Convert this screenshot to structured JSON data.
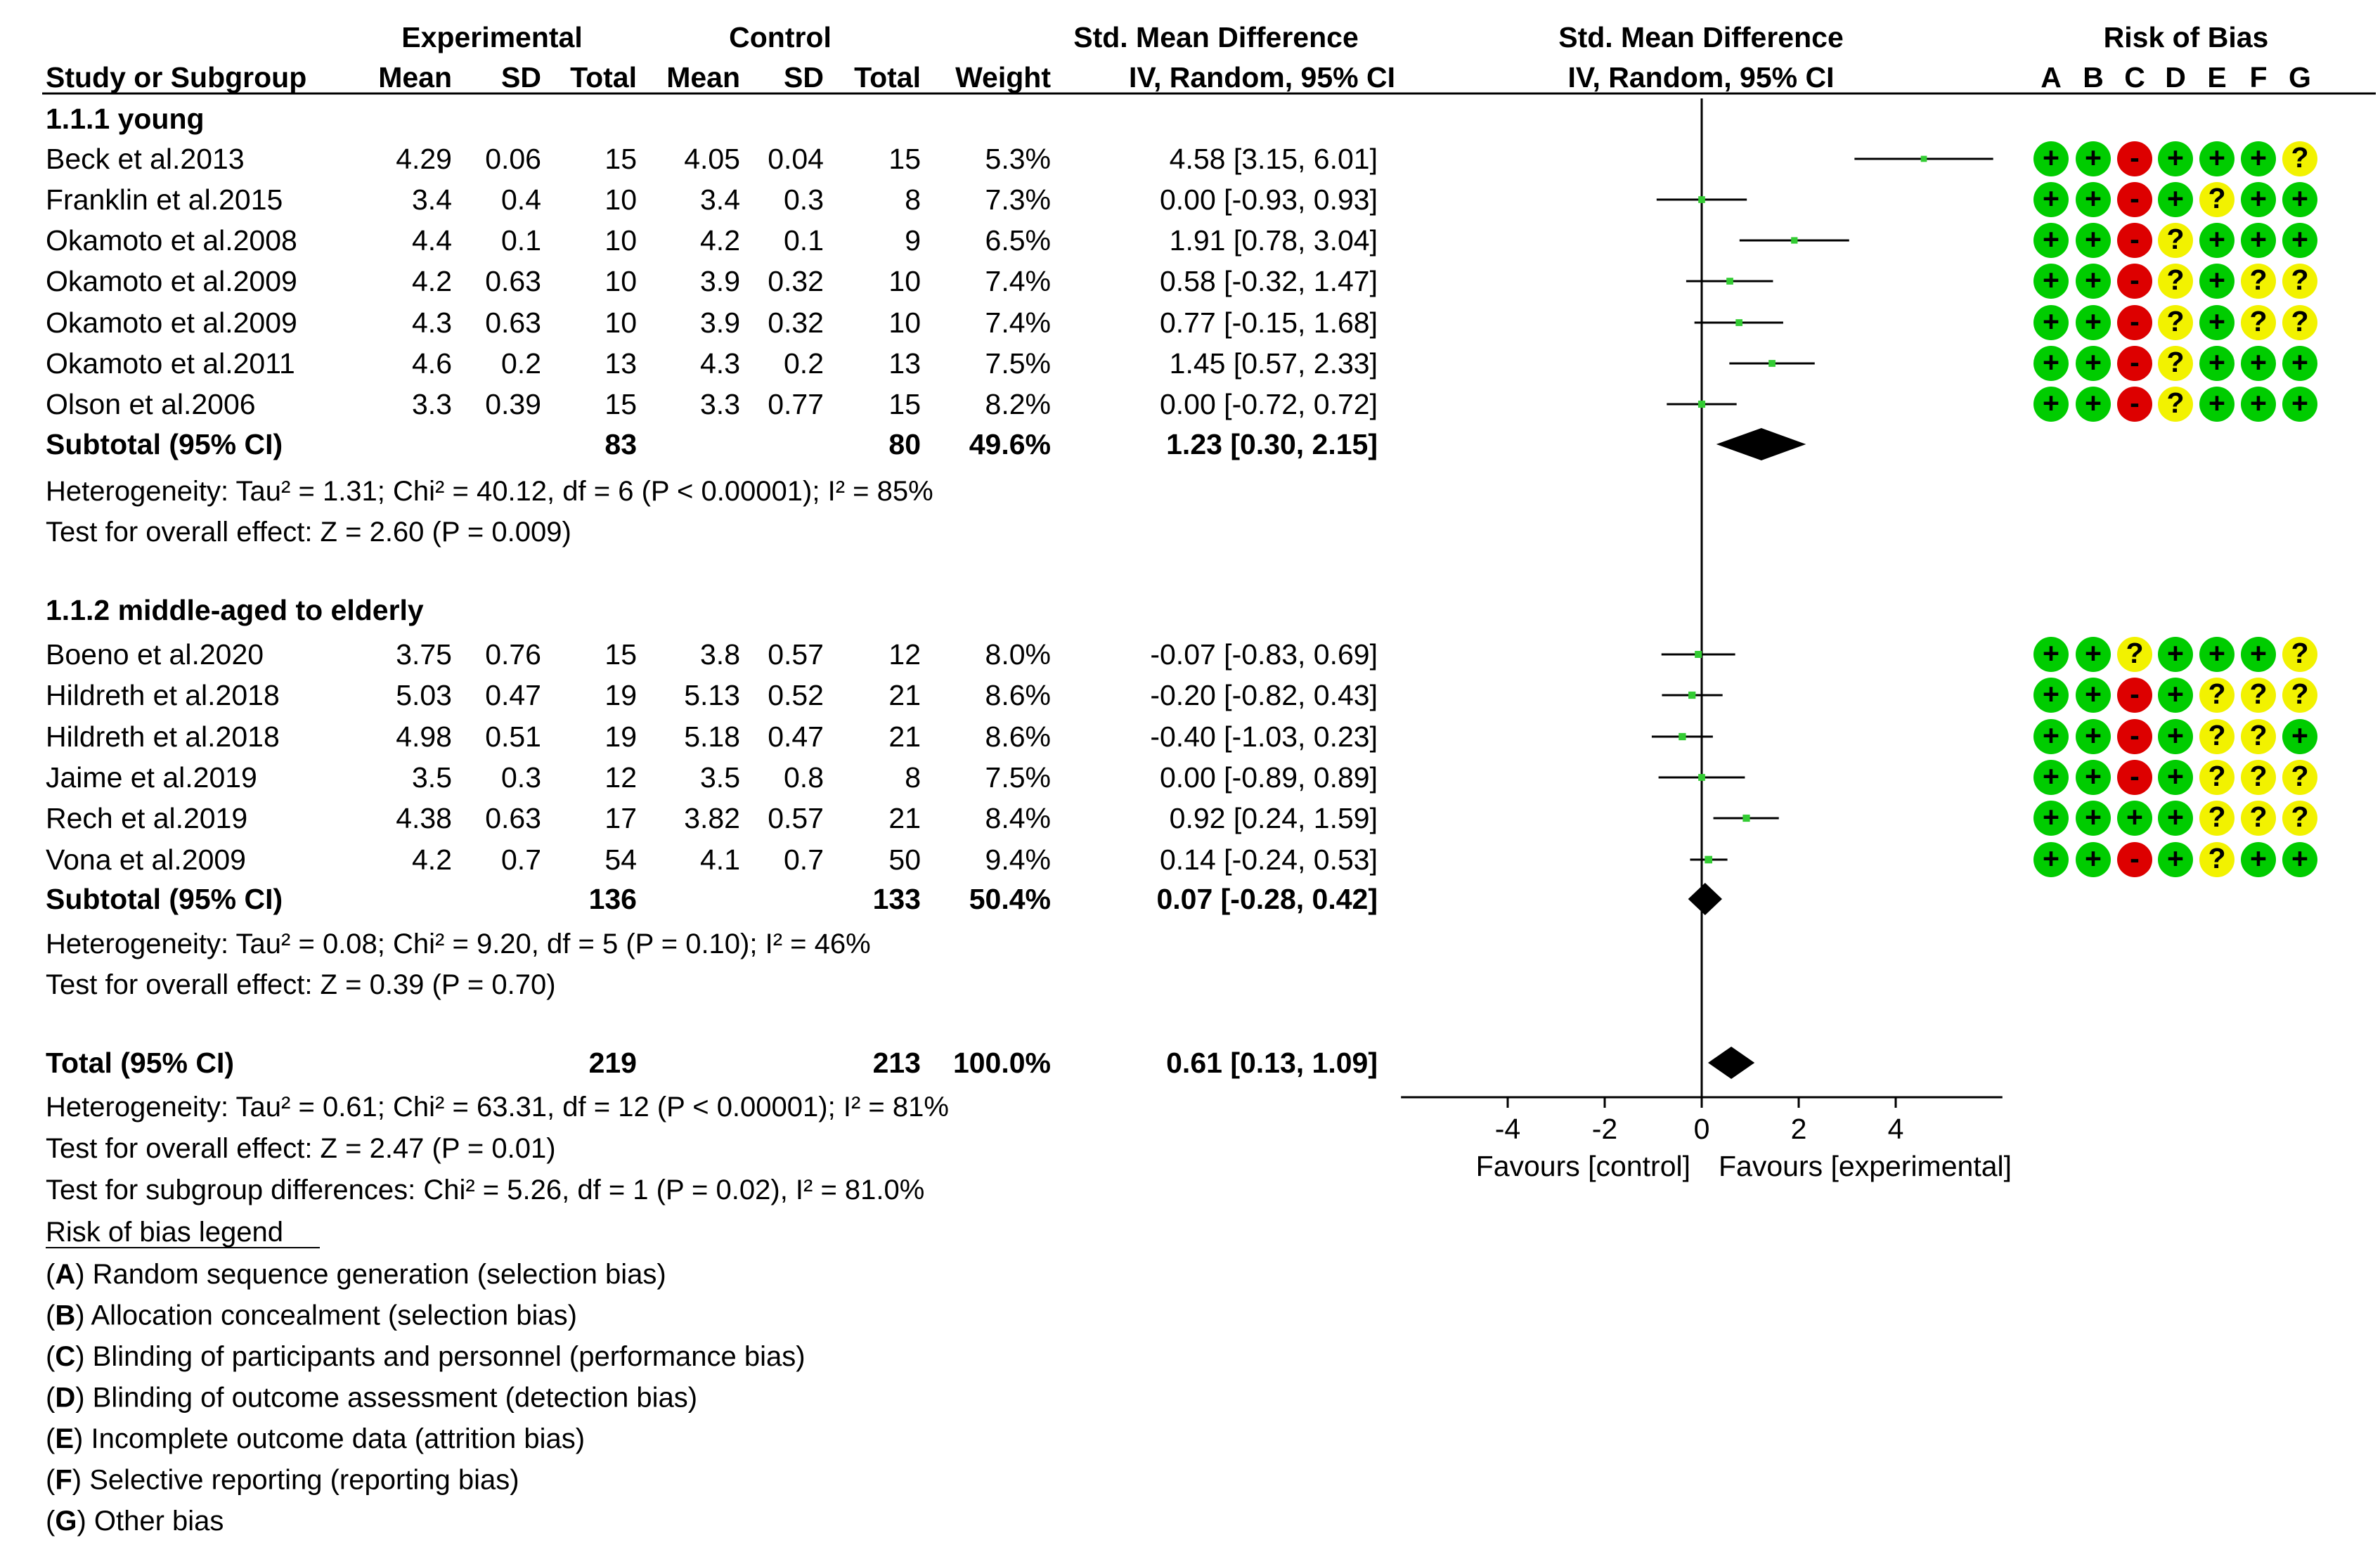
{
  "headers": {
    "experimental": "Experimental",
    "control": "Control",
    "smd": "Std. Mean Difference",
    "smd_plot": "Std. Mean Difference",
    "rob": "Risk of Bias",
    "study": "Study or Subgroup",
    "mean": "Mean",
    "sd": "SD",
    "total": "Total",
    "weight": "Weight",
    "method": "IV, Random, 95% CI",
    "method_plot": "IV, Random, 95% CI",
    "rob_letters": [
      "A",
      "B",
      "C",
      "D",
      "E",
      "F",
      "G"
    ]
  },
  "chart_data": {
    "type": "forest",
    "xlim": [
      -6.2,
      6.2
    ],
    "xticks": [
      -4,
      -2,
      0,
      2,
      4
    ],
    "xtick_labels": [
      "-4",
      "-2",
      "0",
      "2",
      "4"
    ],
    "xlabel_left": "Favours [control]",
    "xlabel_right": "Favours [experimental]",
    "groups": [
      {
        "title": "1.1.1 young",
        "studies": [
          {
            "name": "Beck et al.2013",
            "em": "4.29",
            "esd": "0.06",
            "en": "15",
            "cm": "4.05",
            "csd": "0.04",
            "cn": "15",
            "weight": "5.3%",
            "ci_text": "4.58 [3.15, 6.01]",
            "est": 4.58,
            "lo": 3.15,
            "hi": 6.01,
            "w": 5.3,
            "rob": [
              "+",
              "+",
              "-",
              "+",
              "+",
              "+",
              "?"
            ]
          },
          {
            "name": "Franklin et al.2015",
            "em": "3.4",
            "esd": "0.4",
            "en": "10",
            "cm": "3.4",
            "csd": "0.3",
            "cn": "8",
            "weight": "7.3%",
            "ci_text": "0.00 [-0.93, 0.93]",
            "est": 0.0,
            "lo": -0.93,
            "hi": 0.93,
            "w": 7.3,
            "rob": [
              "+",
              "+",
              "-",
              "+",
              "?",
              "+",
              "+"
            ]
          },
          {
            "name": "Okamoto et al.2008",
            "em": "4.4",
            "esd": "0.1",
            "en": "10",
            "cm": "4.2",
            "csd": "0.1",
            "cn": "9",
            "weight": "6.5%",
            "ci_text": "1.91 [0.78, 3.04]",
            "est": 1.91,
            "lo": 0.78,
            "hi": 3.04,
            "w": 6.5,
            "rob": [
              "+",
              "+",
              "-",
              "?",
              "+",
              "+",
              "+"
            ]
          },
          {
            "name": "Okamoto et al.2009",
            "em": "4.2",
            "esd": "0.63",
            "en": "10",
            "cm": "3.9",
            "csd": "0.32",
            "cn": "10",
            "weight": "7.4%",
            "ci_text": "0.58 [-0.32, 1.47]",
            "est": 0.58,
            "lo": -0.32,
            "hi": 1.47,
            "w": 7.4,
            "rob": [
              "+",
              "+",
              "-",
              "?",
              "+",
              "?",
              "?"
            ]
          },
          {
            "name": "Okamoto et al.2009",
            "em": "4.3",
            "esd": "0.63",
            "en": "10",
            "cm": "3.9",
            "csd": "0.32",
            "cn": "10",
            "weight": "7.4%",
            "ci_text": "0.77 [-0.15, 1.68]",
            "est": 0.77,
            "lo": -0.15,
            "hi": 1.68,
            "w": 7.4,
            "rob": [
              "+",
              "+",
              "-",
              "?",
              "+",
              "?",
              "?"
            ]
          },
          {
            "name": "Okamoto et al.2011",
            "em": "4.6",
            "esd": "0.2",
            "en": "13",
            "cm": "4.3",
            "csd": "0.2",
            "cn": "13",
            "weight": "7.5%",
            "ci_text": "1.45 [0.57, 2.33]",
            "est": 1.45,
            "lo": 0.57,
            "hi": 2.33,
            "w": 7.5,
            "rob": [
              "+",
              "+",
              "-",
              "?",
              "+",
              "+",
              "+"
            ]
          },
          {
            "name": "Olson et al.2006",
            "em": "3.3",
            "esd": "0.39",
            "en": "15",
            "cm": "3.3",
            "csd": "0.77",
            "cn": "15",
            "weight": "8.2%",
            "ci_text": "0.00 [-0.72, 0.72]",
            "est": 0.0,
            "lo": -0.72,
            "hi": 0.72,
            "w": 8.2,
            "rob": [
              "+",
              "+",
              "-",
              "?",
              "+",
              "+",
              "+"
            ]
          }
        ],
        "subtotal": {
          "label": "Subtotal (95% CI)",
          "en": "83",
          "cn": "80",
          "weight": "49.6%",
          "ci_text": "1.23 [0.30, 2.15]",
          "est": 1.23,
          "lo": 0.3,
          "hi": 2.15
        },
        "heterogeneity": "Heterogeneity: Tau² = 1.31; Chi² = 40.12, df = 6 (P < 0.00001); I² = 85%",
        "overall": "Test for overall effect: Z = 2.60 (P = 0.009)"
      },
      {
        "title": "1.1.2 middle-aged to elderly",
        "studies": [
          {
            "name": "Boeno et al.2020",
            "em": "3.75",
            "esd": "0.76",
            "en": "15",
            "cm": "3.8",
            "csd": "0.57",
            "cn": "12",
            "weight": "8.0%",
            "ci_text": "-0.07 [-0.83, 0.69]",
            "est": -0.07,
            "lo": -0.83,
            "hi": 0.69,
            "w": 8.0,
            "rob": [
              "+",
              "+",
              "?",
              "+",
              "+",
              "+",
              "?"
            ]
          },
          {
            "name": "Hildreth et al.2018",
            "em": "5.03",
            "esd": "0.47",
            "en": "19",
            "cm": "5.13",
            "csd": "0.52",
            "cn": "21",
            "weight": "8.6%",
            "ci_text": "-0.20 [-0.82, 0.43]",
            "est": -0.2,
            "lo": -0.82,
            "hi": 0.43,
            "w": 8.6,
            "rob": [
              "+",
              "+",
              "-",
              "+",
              "?",
              "?",
              "?"
            ]
          },
          {
            "name": "Hildreth et al.2018",
            "em": "4.98",
            "esd": "0.51",
            "en": "19",
            "cm": "5.18",
            "csd": "0.47",
            "cn": "21",
            "weight": "8.6%",
            "ci_text": "-0.40 [-1.03, 0.23]",
            "est": -0.4,
            "lo": -1.03,
            "hi": 0.23,
            "w": 8.6,
            "rob": [
              "+",
              "+",
              "-",
              "+",
              "?",
              "?",
              "+"
            ]
          },
          {
            "name": "Jaime et al.2019",
            "em": "3.5",
            "esd": "0.3",
            "en": "12",
            "cm": "3.5",
            "csd": "0.8",
            "cn": "8",
            "weight": "7.5%",
            "ci_text": "0.00 [-0.89, 0.89]",
            "est": 0.0,
            "lo": -0.89,
            "hi": 0.89,
            "w": 7.5,
            "rob": [
              "+",
              "+",
              "-",
              "+",
              "?",
              "?",
              "?"
            ]
          },
          {
            "name": "Rech et al.2019",
            "em": "4.38",
            "esd": "0.63",
            "en": "17",
            "cm": "3.82",
            "csd": "0.57",
            "cn": "21",
            "weight": "8.4%",
            "ci_text": "0.92 [0.24, 1.59]",
            "est": 0.92,
            "lo": 0.24,
            "hi": 1.59,
            "w": 8.4,
            "rob": [
              "+",
              "+",
              "+",
              "+",
              "?",
              "?",
              "?"
            ]
          },
          {
            "name": "Vona et al.2009",
            "em": "4.2",
            "esd": "0.7",
            "en": "54",
            "cm": "4.1",
            "csd": "0.7",
            "cn": "50",
            "weight": "9.4%",
            "ci_text": "0.14 [-0.24, 0.53]",
            "est": 0.14,
            "lo": -0.24,
            "hi": 0.53,
            "w": 9.4,
            "rob": [
              "+",
              "+",
              "-",
              "+",
              "?",
              "+",
              "+"
            ]
          }
        ],
        "subtotal": {
          "label": "Subtotal (95% CI)",
          "en": "136",
          "cn": "133",
          "weight": "50.4%",
          "ci_text": "0.07 [-0.28, 0.42]",
          "est": 0.07,
          "lo": -0.28,
          "hi": 0.42
        },
        "heterogeneity": "Heterogeneity: Tau² = 0.08; Chi² = 9.20, df = 5 (P = 0.10); I² = 46%",
        "overall": "Test for overall effect: Z = 0.39 (P = 0.70)"
      }
    ],
    "total": {
      "label": "Total (95% CI)",
      "en": "219",
      "cn": "213",
      "weight": "100.0%",
      "ci_text": "0.61 [0.13, 1.09]",
      "est": 0.61,
      "lo": 0.13,
      "hi": 1.09
    },
    "total_heterogeneity": "Heterogeneity: Tau² = 0.61; Chi² = 63.31, df = 12 (P < 0.00001); I² = 81%",
    "total_overall": "Test for overall effect: Z = 2.47 (P = 0.01)",
    "subgroup_test": "Test for subgroup differences: Chi² = 5.26, df = 1 (P = 0.02), I² = 81.0%"
  },
  "legend": {
    "title": "Risk of bias legend",
    "items": [
      {
        "letter": "A",
        "text": "Random sequence generation (selection bias)"
      },
      {
        "letter": "B",
        "text": "Allocation concealment (selection bias)"
      },
      {
        "letter": "C",
        "text": "Blinding of participants and personnel (performance bias)"
      },
      {
        "letter": "D",
        "text": "Blinding of outcome assessment (detection bias)"
      },
      {
        "letter": "E",
        "text": "Incomplete outcome data (attrition bias)"
      },
      {
        "letter": "F",
        "text": "Selective reporting (reporting bias)"
      },
      {
        "letter": "G",
        "text": "Other bias"
      }
    ]
  },
  "colors": {
    "low": "#00cc00",
    "high": "#dd0000",
    "unclear": "#f2f200",
    "point": "#33cc33",
    "line": "#000000"
  }
}
